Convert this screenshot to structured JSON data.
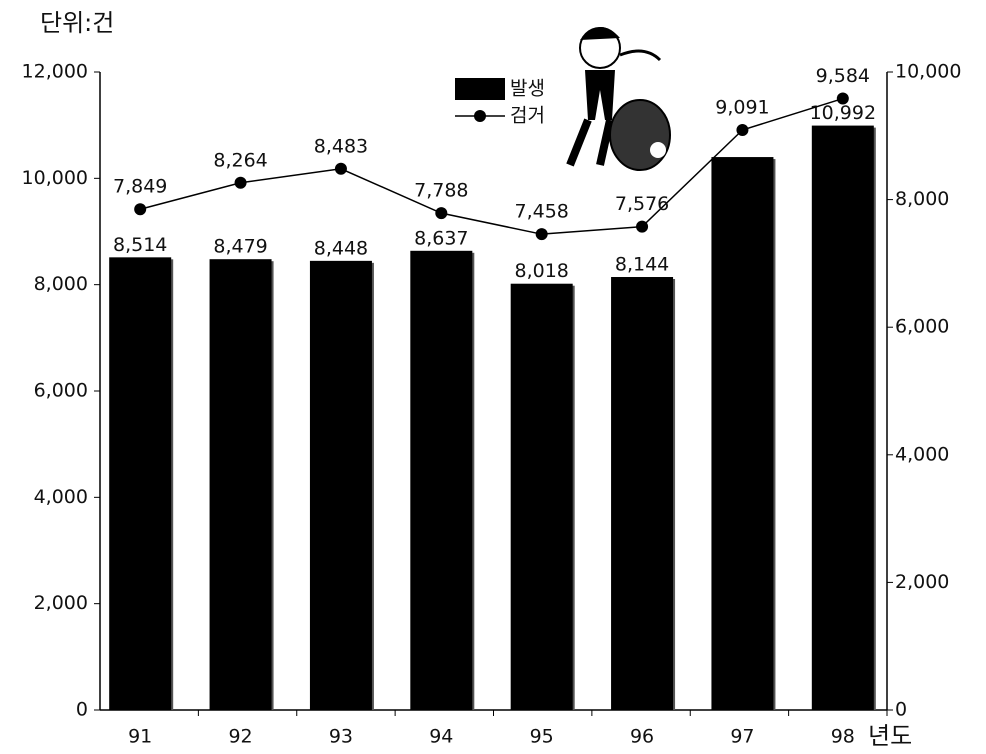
{
  "chart_data": {
    "type": "bar",
    "unit_label": "단위:건",
    "x_label": "년도",
    "categories": [
      "91",
      "92",
      "93",
      "94",
      "95",
      "96",
      "97",
      "98"
    ],
    "series": [
      {
        "name": "발생",
        "type": "bar",
        "color": "#000000",
        "values": [
          8514,
          8479,
          8448,
          8637,
          8018,
          8144,
          10400,
          10992
        ],
        "value_labels": [
          "8,514",
          "8,479",
          "8,448",
          "8,637",
          "8,018",
          "8,144",
          null,
          "10,992"
        ]
      },
      {
        "name": "검거",
        "type": "line",
        "axis": "y2",
        "color": "#000000",
        "values": [
          7849,
          8264,
          8483,
          7788,
          7458,
          7576,
          9091,
          9584
        ],
        "value_labels": [
          "7,849",
          "8,264",
          "8,483",
          "7,788",
          "7,458",
          "7,576",
          "9,091",
          "9,584"
        ]
      }
    ],
    "ylim": [
      0,
      12000
    ],
    "yticks": [
      0,
      {
        "value": 2000,
        "label": "2,000"
      },
      {
        "value": 4000,
        "label": "4,000"
      },
      {
        "value": 6000,
        "label": "6,000"
      },
      {
        "value": 8000,
        "label": "8,000"
      },
      {
        "value": 10000,
        "label": "10,000"
      },
      {
        "value": 12000,
        "label": "12,000"
      }
    ],
    "y2lim": [
      0,
      10000
    ],
    "y2ticks": [
      0,
      {
        "value": 2000,
        "label": "2,000"
      },
      {
        "value": 4000,
        "label": "4,000"
      },
      {
        "value": 6000,
        "label": "6,000"
      },
      {
        "value": 8000,
        "label": "8,000"
      },
      {
        "value": 10000,
        "label": "10,000"
      }
    ],
    "legend": "top-center"
  }
}
